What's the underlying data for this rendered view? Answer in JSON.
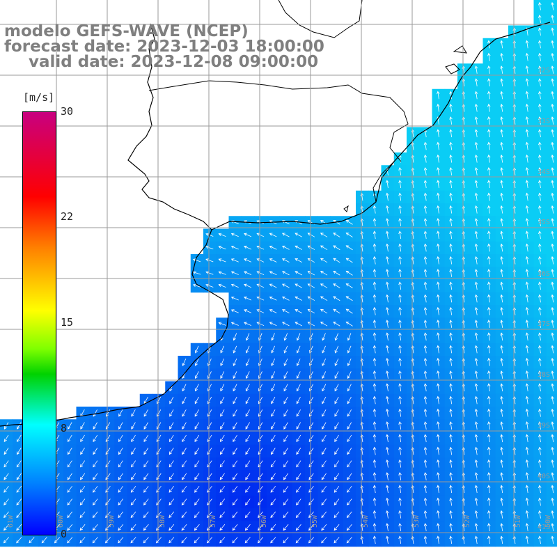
{
  "titles": {
    "line1": "modelo GEFS-WAVE (NCEP)",
    "line2": "forecast date: 2023-12-03 18:00:00",
    "line3": "valid date: 2023-12-08 09:00:00"
  },
  "colorbar": {
    "unit": "[m/s]",
    "ticks": [
      "30",
      "22",
      "15",
      "8",
      "0"
    ],
    "colors": [
      "#c80080",
      "#ff0000",
      "#ff7f00",
      "#ffff00",
      "#7fff00",
      "#00d200",
      "#00ffff",
      "#007fff",
      "#0000ff"
    ]
  },
  "map": {
    "lat_labels": [
      "32S",
      "33S",
      "34S",
      "35S",
      "36S",
      "37S",
      "38S",
      "39S",
      "40S",
      "41S"
    ],
    "lon_labels": [
      "61W",
      "60W",
      "59W",
      "58W",
      "57W",
      "56W",
      "55W",
      "54W",
      "53W",
      "52W",
      "51W",
      "50W"
    ],
    "land_color": "#ffffff",
    "grid_color": "#9a9a9a",
    "arrow_color": "#ffffff"
  }
}
